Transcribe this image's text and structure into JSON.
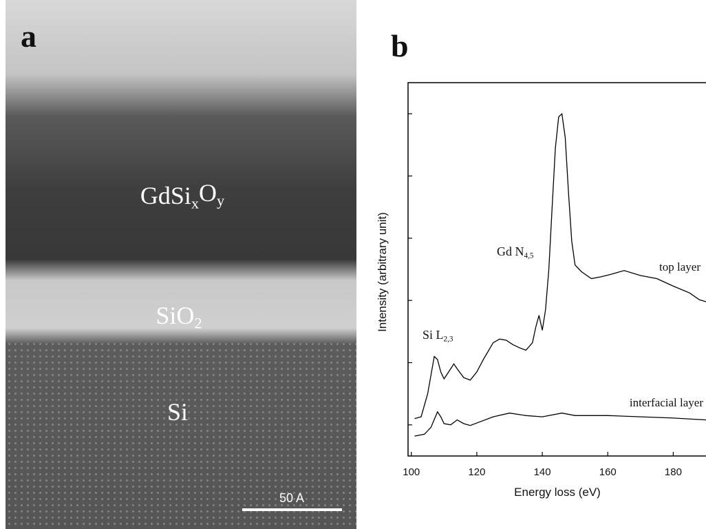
{
  "panel_a": {
    "label": "a",
    "layer_labels": [
      [
        "GdSi",
        "x",
        "O",
        "y"
      ],
      [
        "SiO",
        "2"
      ],
      [
        "Si"
      ]
    ],
    "scale_bar": "50 A"
  },
  "chart_data": {
    "type": "line",
    "title": "b",
    "xlabel": "Energy loss (eV)",
    "ylabel": "Intensity (arbitrary unit)",
    "xlim": [
      99,
      190
    ],
    "xticks": [
      100,
      120,
      140,
      160,
      180
    ],
    "ylim": [
      0,
      6
    ],
    "yticks": [
      0.5,
      1.5,
      2.5,
      3.5,
      4.5,
      5.5
    ],
    "annotations": [
      [
        "Si L",
        "2,3"
      ],
      [
        "Gd N",
        "4,5"
      ]
    ],
    "series": [
      {
        "name": "top layer",
        "color": "#000000",
        "x": [
          101,
          103,
          105,
          107,
          108,
          109,
          110,
          112,
          113,
          114,
          116,
          118,
          120,
          122,
          125,
          127,
          129,
          131,
          133,
          135,
          137,
          138,
          139,
          140,
          141,
          142,
          143,
          144,
          145,
          146,
          147,
          148,
          149,
          150,
          152,
          155,
          158,
          161,
          165,
          170,
          175,
          180,
          185,
          188,
          190
        ],
        "values": [
          0.6,
          0.63,
          1.0,
          1.6,
          1.55,
          1.35,
          1.24,
          1.4,
          1.48,
          1.4,
          1.26,
          1.22,
          1.35,
          1.55,
          1.82,
          1.88,
          1.86,
          1.79,
          1.74,
          1.7,
          1.82,
          2.07,
          2.26,
          2.02,
          2.35,
          3.0,
          4.0,
          4.95,
          5.45,
          5.5,
          5.12,
          4.23,
          3.45,
          3.07,
          2.96,
          2.85,
          2.88,
          2.92,
          2.98,
          2.9,
          2.85,
          2.73,
          2.62,
          2.51,
          2.48
        ]
      },
      {
        "name": "interfacial layer",
        "color": "#000000",
        "x": [
          101,
          104,
          106,
          108,
          109,
          110,
          112,
          114,
          116,
          118,
          121,
          125,
          130,
          135,
          140,
          146,
          150,
          160,
          170,
          180,
          190
        ],
        "values": [
          0.32,
          0.35,
          0.46,
          0.71,
          0.63,
          0.52,
          0.5,
          0.58,
          0.52,
          0.49,
          0.55,
          0.63,
          0.69,
          0.65,
          0.63,
          0.69,
          0.65,
          0.65,
          0.63,
          0.61,
          0.58
        ]
      }
    ]
  }
}
